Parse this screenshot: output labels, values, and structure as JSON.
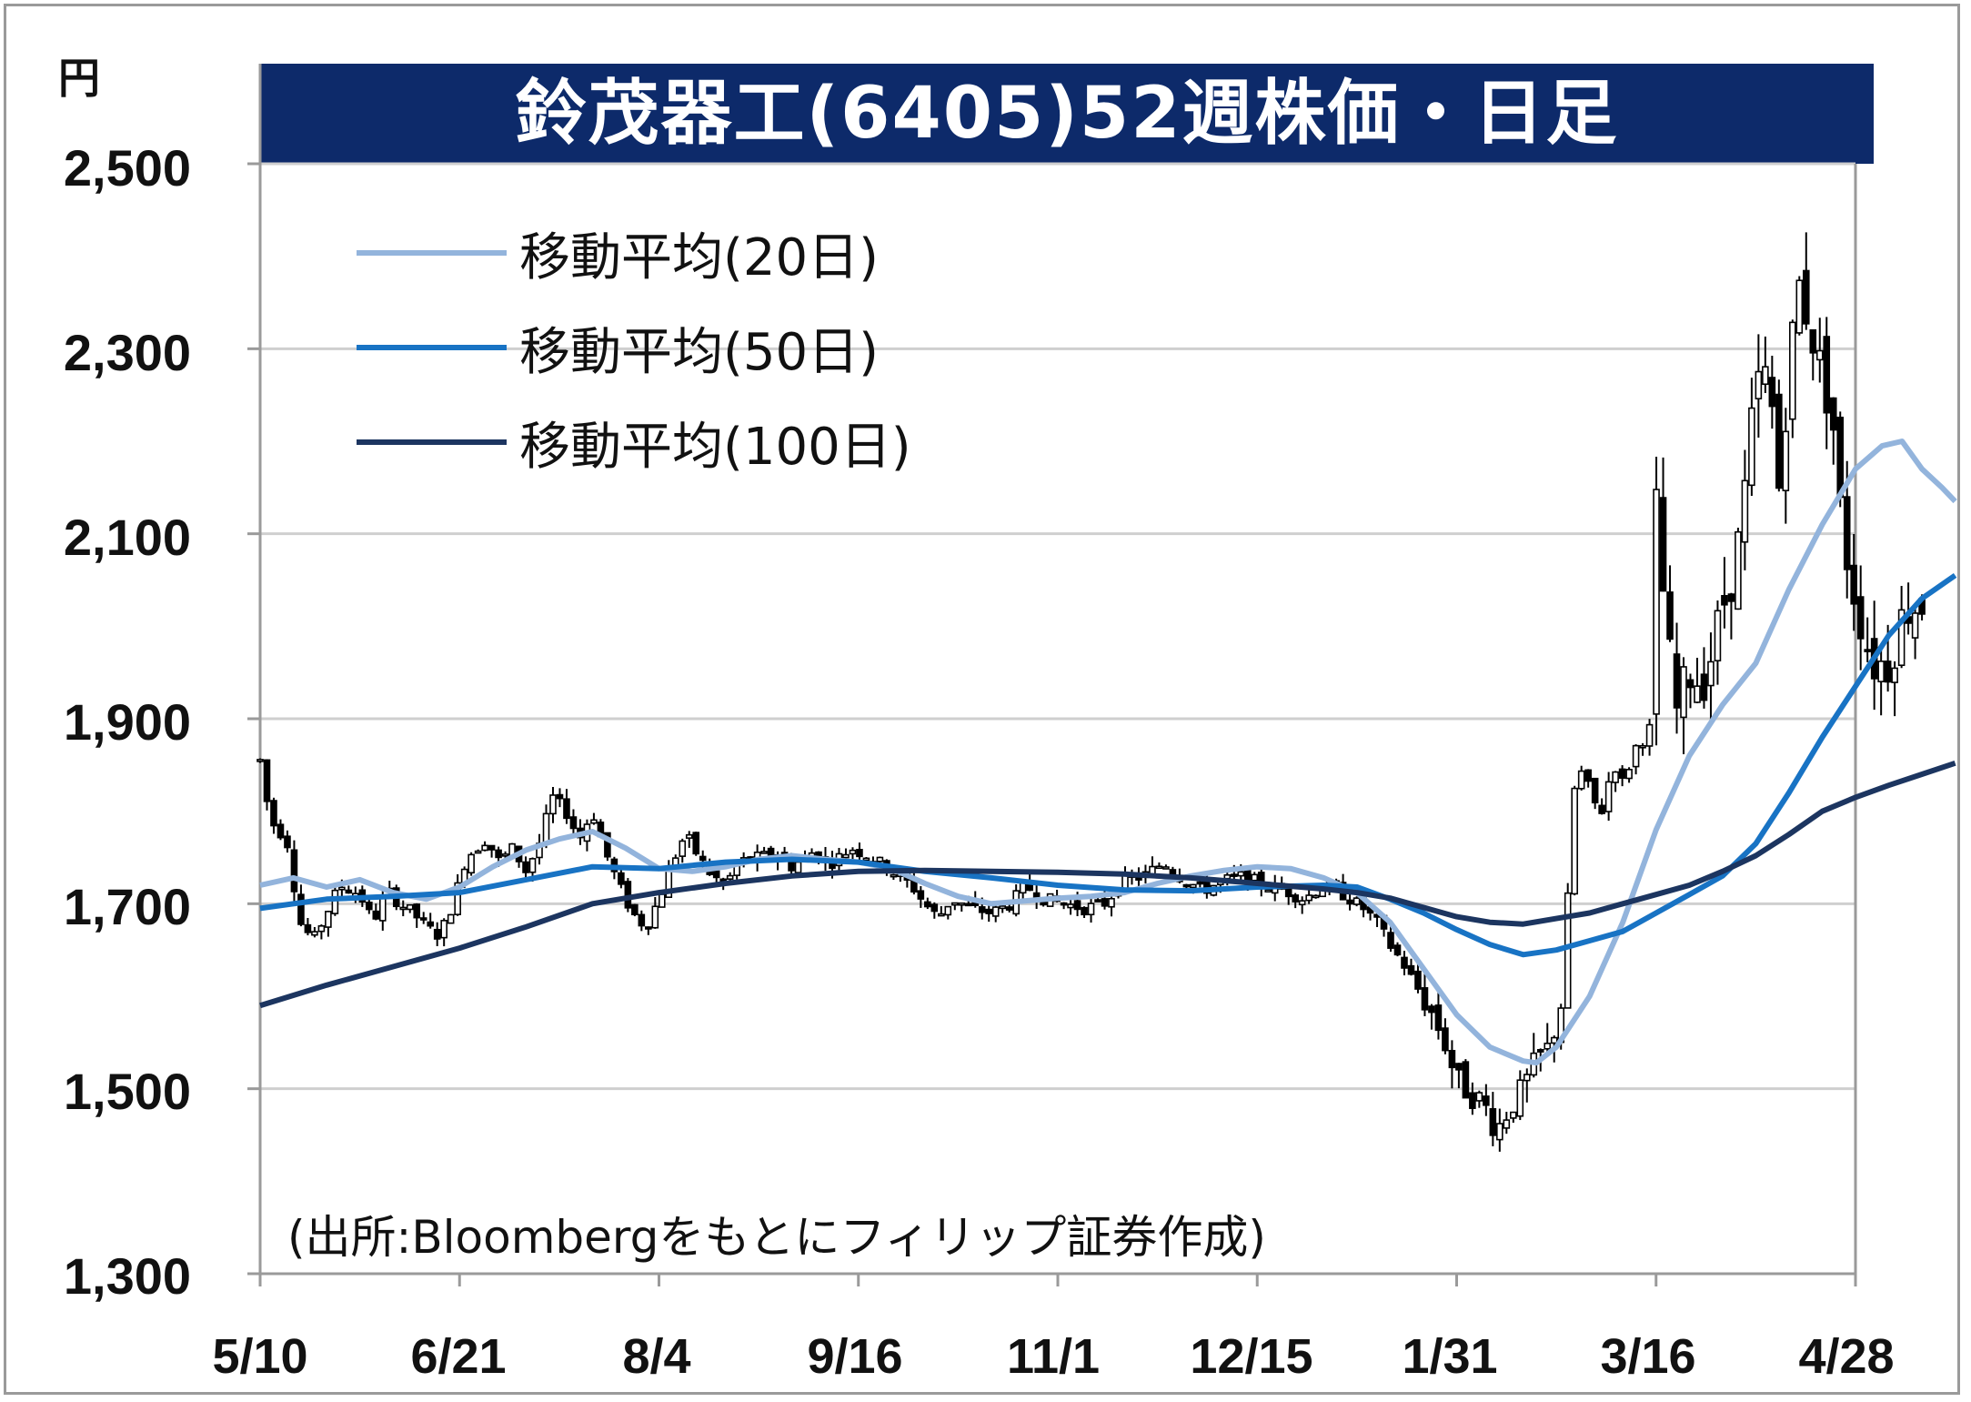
{
  "title": "鈴茂器工(6405)52週株価・日足",
  "unit": "円",
  "source": "(出所:Bloombergをもとにフィリップ証券作成)",
  "colors": {
    "title_bg": "#0d2a6a",
    "ma20": "#93b4dc",
    "ma50": "#1873c4",
    "ma100": "#1c3560",
    "grid": "#cfcfcf",
    "axis": "#9a9a9a",
    "candle": "#000000"
  },
  "legend": [
    {
      "label": "移動平均(20日)",
      "series": "ma20"
    },
    {
      "label": "移動平均(50日)",
      "series": "ma50"
    },
    {
      "label": "移動平均(100日)",
      "series": "ma100"
    }
  ],
  "chart_data": {
    "type": "line",
    "title": "鈴茂器工(6405)52週株価・日足",
    "ylabel": "円",
    "ylim": [
      1300,
      2500
    ],
    "y_ticks": [
      1300,
      1500,
      1700,
      1900,
      2100,
      2300,
      2500
    ],
    "y_tick_labels": [
      "1,300",
      "1,500",
      "1,700",
      "1,900",
      "2,100",
      "2,300",
      "2,500"
    ],
    "x_tick_labels": [
      "5/10",
      "6/21",
      "8/4",
      "9/16",
      "11/1",
      "12/15",
      "1/31",
      "3/16",
      "4/28"
    ],
    "x_domain": [
      0,
      48
    ],
    "x_ticks": [
      0,
      6,
      12,
      18,
      24,
      30,
      36,
      42,
      48
    ],
    "grid": true,
    "legend_position": "top-left",
    "price_points": [
      [
        0,
        1855
      ],
      [
        0.3,
        1790
      ],
      [
        0.8,
        1770
      ],
      [
        1.2,
        1680
      ],
      [
        1.6,
        1660
      ],
      [
        2.0,
        1690
      ],
      [
        2.4,
        1720
      ],
      [
        3.0,
        1710
      ],
      [
        3.4,
        1680
      ],
      [
        3.8,
        1715
      ],
      [
        4.2,
        1700
      ],
      [
        4.6,
        1690
      ],
      [
        5.0,
        1675
      ],
      [
        5.4,
        1665
      ],
      [
        5.8,
        1700
      ],
      [
        6.2,
        1750
      ],
      [
        6.8,
        1770
      ],
      [
        7.2,
        1745
      ],
      [
        7.6,
        1760
      ],
      [
        8.0,
        1735
      ],
      [
        8.4,
        1765
      ],
      [
        8.8,
        1815
      ],
      [
        9.2,
        1800
      ],
      [
        9.6,
        1770
      ],
      [
        10.0,
        1800
      ],
      [
        10.4,
        1755
      ],
      [
        10.8,
        1720
      ],
      [
        11.2,
        1690
      ],
      [
        11.6,
        1675
      ],
      [
        12.0,
        1705
      ],
      [
        12.4,
        1745
      ],
      [
        12.8,
        1775
      ],
      [
        13.2,
        1750
      ],
      [
        13.6,
        1730
      ],
      [
        14.0,
        1720
      ],
      [
        14.4,
        1745
      ],
      [
        15.0,
        1750
      ],
      [
        15.6,
        1755
      ],
      [
        16.0,
        1740
      ],
      [
        16.6,
        1755
      ],
      [
        17.2,
        1745
      ],
      [
        17.8,
        1760
      ],
      [
        18.4,
        1750
      ],
      [
        19.0,
        1735
      ],
      [
        19.6,
        1720
      ],
      [
        20.0,
        1700
      ],
      [
        20.4,
        1685
      ],
      [
        20.8,
        1705
      ],
      [
        21.4,
        1695
      ],
      [
        22.0,
        1690
      ],
      [
        22.6,
        1700
      ],
      [
        23.0,
        1720
      ],
      [
        23.6,
        1705
      ],
      [
        24.2,
        1700
      ],
      [
        24.8,
        1695
      ],
      [
        25.4,
        1700
      ],
      [
        26.0,
        1725
      ],
      [
        26.6,
        1730
      ],
      [
        27.2,
        1745
      ],
      [
        27.8,
        1725
      ],
      [
        28.4,
        1715
      ],
      [
        29.0,
        1725
      ],
      [
        29.6,
        1730
      ],
      [
        30.2,
        1720
      ],
      [
        30.8,
        1715
      ],
      [
        31.4,
        1705
      ],
      [
        32.0,
        1720
      ],
      [
        32.6,
        1710
      ],
      [
        33.2,
        1695
      ],
      [
        33.6,
        1680
      ],
      [
        34.0,
        1655
      ],
      [
        34.4,
        1635
      ],
      [
        34.8,
        1610
      ],
      [
        35.2,
        1585
      ],
      [
        35.6,
        1555
      ],
      [
        36.0,
        1510
      ],
      [
        36.4,
        1495
      ],
      [
        36.8,
        1485
      ],
      [
        37.2,
        1455
      ],
      [
        37.6,
        1480
      ],
      [
        38.0,
        1500
      ],
      [
        38.4,
        1530
      ],
      [
        38.8,
        1545
      ],
      [
        39.2,
        1600
      ],
      [
        39.5,
        1820
      ],
      [
        39.8,
        1845
      ],
      [
        40.1,
        1810
      ],
      [
        40.4,
        1800
      ],
      [
        40.7,
        1855
      ],
      [
        41.0,
        1830
      ],
      [
        41.4,
        1870
      ],
      [
        41.8,
        1885
      ],
      [
        42.0,
        2130
      ],
      [
        42.3,
        2000
      ],
      [
        42.6,
        1905
      ],
      [
        43.0,
        1950
      ],
      [
        43.4,
        1940
      ],
      [
        43.7,
        1975
      ],
      [
        44.0,
        2020
      ],
      [
        44.4,
        2070
      ],
      [
        44.7,
        2150
      ],
      [
        45.0,
        2260
      ],
      [
        45.4,
        2270
      ],
      [
        45.7,
        2150
      ],
      [
        46.0,
        2280
      ],
      [
        46.3,
        2370
      ],
      [
        46.6,
        2330
      ],
      [
        47.0,
        2270
      ],
      [
        47.3,
        2230
      ],
      [
        47.6,
        2100
      ],
      [
        48.0,
        2030
      ],
      [
        48.5,
        1960
      ],
      [
        49.0,
        1960
      ],
      [
        49.5,
        2020
      ],
      [
        50.0,
        2025
      ]
    ],
    "series": [
      {
        "name": "移動平均(20日)",
        "key": "ma20",
        "points": [
          [
            0,
            1720
          ],
          [
            1,
            1728
          ],
          [
            2,
            1718
          ],
          [
            3,
            1726
          ],
          [
            4,
            1712
          ],
          [
            5,
            1705
          ],
          [
            6,
            1718
          ],
          [
            7,
            1740
          ],
          [
            8,
            1758
          ],
          [
            9,
            1770
          ],
          [
            10,
            1778
          ],
          [
            11,
            1760
          ],
          [
            12,
            1738
          ],
          [
            13,
            1735
          ],
          [
            14,
            1740
          ],
          [
            15,
            1748
          ],
          [
            16,
            1752
          ],
          [
            17,
            1748
          ],
          [
            18,
            1745
          ],
          [
            19,
            1738
          ],
          [
            20,
            1722
          ],
          [
            21,
            1708
          ],
          [
            22,
            1700
          ],
          [
            23,
            1703
          ],
          [
            24,
            1706
          ],
          [
            25,
            1708
          ],
          [
            26,
            1712
          ],
          [
            27,
            1722
          ],
          [
            28,
            1730
          ],
          [
            29,
            1736
          ],
          [
            30,
            1740
          ],
          [
            31,
            1738
          ],
          [
            32,
            1728
          ],
          [
            33,
            1712
          ],
          [
            34,
            1680
          ],
          [
            35,
            1630
          ],
          [
            36,
            1580
          ],
          [
            37,
            1545
          ],
          [
            38,
            1530
          ],
          [
            38.4,
            1528
          ],
          [
            39,
            1545
          ],
          [
            40,
            1600
          ],
          [
            41,
            1680
          ],
          [
            42,
            1780
          ],
          [
            43,
            1860
          ],
          [
            44,
            1915
          ],
          [
            45,
            1960
          ],
          [
            46,
            2040
          ],
          [
            47,
            2110
          ],
          [
            48,
            2170
          ],
          [
            48.8,
            2195
          ],
          [
            49.4,
            2200
          ],
          [
            50,
            2170
          ],
          [
            50.6,
            2150
          ],
          [
            51,
            2135
          ]
        ]
      },
      {
        "name": "移動平均(50日)",
        "key": "ma50",
        "points": [
          [
            0,
            1695
          ],
          [
            2,
            1705
          ],
          [
            4,
            1708
          ],
          [
            6,
            1712
          ],
          [
            8,
            1726
          ],
          [
            10,
            1740
          ],
          [
            12,
            1738
          ],
          [
            14,
            1745
          ],
          [
            16,
            1748
          ],
          [
            18,
            1745
          ],
          [
            20,
            1735
          ],
          [
            22,
            1728
          ],
          [
            24,
            1720
          ],
          [
            26,
            1715
          ],
          [
            28,
            1714
          ],
          [
            30,
            1718
          ],
          [
            32,
            1720
          ],
          [
            33,
            1718
          ],
          [
            34,
            1705
          ],
          [
            35,
            1690
          ],
          [
            36,
            1672
          ],
          [
            37,
            1656
          ],
          [
            38,
            1645
          ],
          [
            39,
            1650
          ],
          [
            40,
            1660
          ],
          [
            41,
            1670
          ],
          [
            42,
            1690
          ],
          [
            43,
            1710
          ],
          [
            44,
            1730
          ],
          [
            45,
            1765
          ],
          [
            46,
            1820
          ],
          [
            47,
            1880
          ],
          [
            48,
            1935
          ],
          [
            49,
            1990
          ],
          [
            50,
            2030
          ],
          [
            51,
            2055
          ]
        ]
      },
      {
        "name": "移動平均(100日)",
        "key": "ma100",
        "points": [
          [
            0,
            1590
          ],
          [
            2,
            1612
          ],
          [
            4,
            1632
          ],
          [
            6,
            1652
          ],
          [
            8,
            1675
          ],
          [
            10,
            1700
          ],
          [
            12,
            1712
          ],
          [
            14,
            1722
          ],
          [
            16,
            1730
          ],
          [
            18,
            1735
          ],
          [
            20,
            1736
          ],
          [
            22,
            1735
          ],
          [
            24,
            1734
          ],
          [
            26,
            1732
          ],
          [
            28,
            1728
          ],
          [
            30,
            1722
          ],
          [
            32,
            1716
          ],
          [
            33,
            1712
          ],
          [
            34,
            1706
          ],
          [
            35,
            1696
          ],
          [
            36,
            1686
          ],
          [
            37,
            1680
          ],
          [
            38,
            1678
          ],
          [
            39,
            1684
          ],
          [
            40,
            1690
          ],
          [
            41,
            1700
          ],
          [
            42,
            1710
          ],
          [
            43,
            1720
          ],
          [
            44,
            1735
          ],
          [
            45,
            1752
          ],
          [
            46,
            1775
          ],
          [
            47,
            1800
          ],
          [
            48,
            1815
          ],
          [
            49,
            1828
          ],
          [
            50,
            1840
          ],
          [
            51,
            1852
          ]
        ]
      }
    ]
  }
}
